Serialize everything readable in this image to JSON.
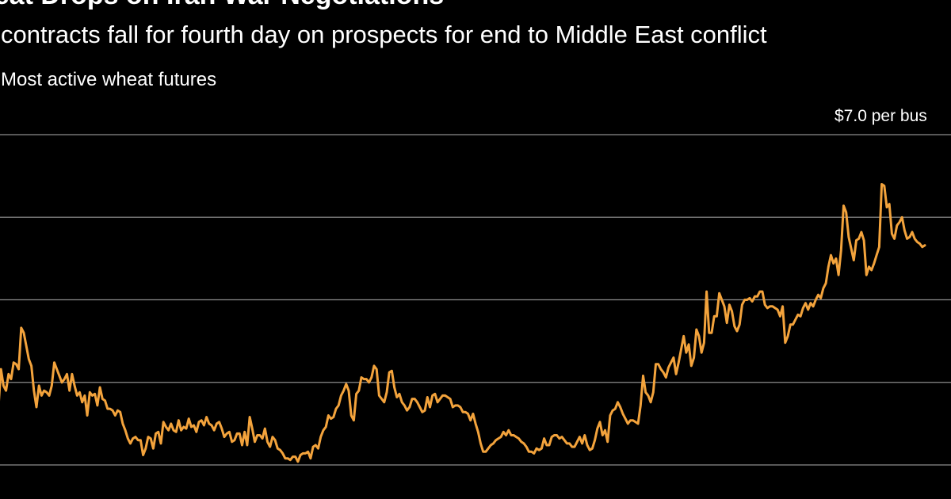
{
  "headline": "heat Drops on Iran War Negotiations",
  "subheadline": "contracts fall for fourth day on prospects for end to Middle East conflict",
  "chart_data": {
    "type": "line",
    "title": "Most active wheat futures",
    "unit_label": "$7.0 per bus",
    "xlabel": "",
    "ylabel": "",
    "grid": true,
    "ylim": [
      5.0,
      7.0
    ],
    "gridlines": [
      7.0,
      6.5,
      6.0,
      5.5,
      5.0
    ],
    "colors": {
      "line": "#f3a33c",
      "grid": "#8c8c8c",
      "background": "#000000"
    },
    "series": [
      {
        "values": [
          5.35,
          5.58,
          5.48,
          5.45,
          5.55,
          5.52,
          5.62,
          5.61,
          5.58,
          5.83,
          5.8,
          5.72,
          5.64,
          5.6,
          5.45,
          5.35,
          5.48,
          5.42,
          5.45,
          5.44,
          5.42,
          5.48,
          5.62,
          5.58,
          5.54,
          5.5,
          5.52,
          5.55,
          5.45,
          5.55,
          5.48,
          5.42,
          5.44,
          5.38,
          5.42,
          5.3,
          5.44,
          5.42,
          5.43,
          5.36,
          5.47,
          5.4,
          5.39,
          5.34,
          5.34,
          5.33,
          5.3,
          5.33,
          5.32,
          5.25,
          5.21,
          5.16,
          5.13,
          5.16,
          5.17,
          5.15,
          5.15,
          5.06,
          5.1,
          5.17,
          5.16,
          5.1,
          5.19,
          5.2,
          5.13,
          5.26,
          5.23,
          5.21,
          5.25,
          5.21,
          5.2,
          5.27,
          5.21,
          5.23,
          5.22,
          5.28,
          5.23,
          5.24,
          5.2,
          5.26,
          5.27,
          5.24,
          5.29,
          5.25,
          5.24,
          5.21,
          5.25,
          5.26,
          5.22,
          5.17,
          5.19,
          5.2,
          5.14,
          5.15,
          5.19,
          5.19,
          5.12,
          5.2,
          5.12,
          5.29,
          5.22,
          5.14,
          5.18,
          5.18,
          5.16,
          5.22,
          5.14,
          5.11,
          5.17,
          5.15,
          5.1,
          5.09,
          5.07,
          5.04,
          5.04,
          5.03,
          5.05,
          5.05,
          5.02,
          5.06,
          5.07,
          5.07,
          5.08,
          5.04,
          5.11,
          5.12,
          5.1,
          5.17,
          5.21,
          5.23,
          5.3,
          5.28,
          5.29,
          5.34,
          5.36,
          5.42,
          5.45,
          5.49,
          5.45,
          5.3,
          5.27,
          5.43,
          5.45,
          5.53,
          5.52,
          5.52,
          5.5,
          5.53,
          5.6,
          5.58,
          5.42,
          5.4,
          5.38,
          5.44,
          5.56,
          5.57,
          5.47,
          5.41,
          5.43,
          5.38,
          5.36,
          5.33,
          5.35,
          5.4,
          5.4,
          5.38,
          5.35,
          5.32,
          5.33,
          5.41,
          5.35,
          5.42,
          5.43,
          5.38,
          5.4,
          5.42,
          5.42,
          5.41,
          5.4,
          5.35,
          5.36,
          5.36,
          5.35,
          5.32,
          5.32,
          5.31,
          5.27,
          5.31,
          5.25,
          5.2,
          5.13,
          5.08,
          5.08,
          5.1,
          5.12,
          5.13,
          5.15,
          5.16,
          5.17,
          5.2,
          5.18,
          5.21,
          5.18,
          5.18,
          5.17,
          5.16,
          5.14,
          5.13,
          5.11,
          5.08,
          5.08,
          5.07,
          5.1,
          5.09,
          5.1,
          5.16,
          5.12,
          5.12,
          5.17,
          5.18,
          5.18,
          5.16,
          5.17,
          5.15,
          5.13,
          5.13,
          5.11,
          5.11,
          5.14,
          5.17,
          5.13,
          5.18,
          5.12,
          5.09,
          5.1,
          5.15,
          5.22,
          5.26,
          5.18,
          5.21,
          5.14,
          5.3,
          5.33,
          5.34,
          5.38,
          5.35,
          5.31,
          5.28,
          5.25,
          5.27,
          5.27,
          5.26,
          5.25,
          5.36,
          5.54,
          5.44,
          5.42,
          5.38,
          5.44,
          5.61,
          5.61,
          5.58,
          5.56,
          5.53,
          5.59,
          5.62,
          5.65,
          5.55,
          5.62,
          5.7,
          5.78,
          5.68,
          5.73,
          5.6,
          5.65,
          5.82,
          5.78,
          5.68,
          5.74,
          6.05,
          5.8,
          5.8,
          5.9,
          5.9,
          6.04,
          6.0,
          5.96,
          5.86,
          5.97,
          5.93,
          5.84,
          5.81,
          5.85,
          5.97,
          6.0,
          6.0,
          6.01,
          5.99,
          6.02,
          6.02,
          6.05,
          6.05,
          5.97,
          5.95,
          5.96,
          5.96,
          5.95,
          5.94,
          5.9,
          5.96,
          5.74,
          5.78,
          5.85,
          5.85,
          5.88,
          5.91,
          5.9,
          5.95,
          5.98,
          5.94,
          5.98,
          5.96,
          6.0,
          6.03,
          6.01,
          6.07,
          6.1,
          6.2,
          6.27,
          6.22,
          6.25,
          6.15,
          6.3,
          6.57,
          6.53,
          6.38,
          6.31,
          6.24,
          6.36,
          6.37,
          6.41,
          6.36,
          6.15,
          6.2,
          6.18,
          6.22,
          6.27,
          6.32,
          6.7,
          6.69,
          6.56,
          6.58,
          6.4,
          6.37,
          6.45,
          6.47,
          6.5,
          6.42,
          6.37,
          6.38,
          6.41,
          6.37,
          6.35,
          6.34,
          6.32,
          6.33
        ]
      }
    ]
  }
}
